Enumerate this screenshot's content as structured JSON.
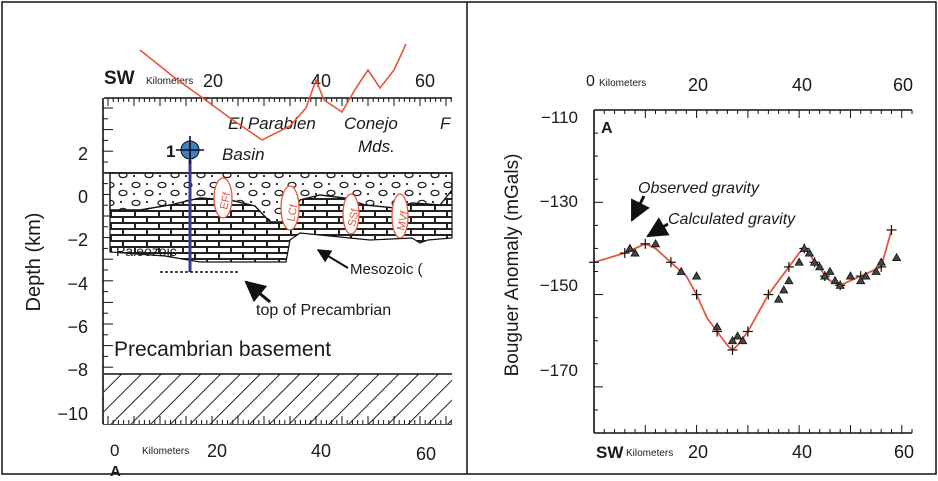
{
  "left_panel": {
    "direction_label": "SW",
    "top_axis_unit": "Kilometers",
    "top_axis_ticks": [
      "20",
      "40",
      "60"
    ],
    "bottom_axis_unit": "Kilometers",
    "bottom_axis_ticks": [
      "0",
      "20",
      "40",
      "60"
    ],
    "bottom_axis_letter": "A",
    "y_axis_label": "Depth (km)",
    "y_ticks": [
      "2",
      "0",
      "−2",
      "−4",
      "−6",
      "−8",
      "−10"
    ],
    "well_number": "1",
    "place_labels": [
      "El Parabien",
      "Basin",
      "Conejo",
      "Mds.",
      "F"
    ],
    "fault_labels": [
      "EFf",
      "LCf",
      "SSf",
      "MVf"
    ],
    "unit_labels": {
      "paleozoic": "Paleozoic",
      "mesozoic": "Mesozoic (",
      "precambrian_top": "top of Precambrian",
      "basement": "Precambrian basement"
    }
  },
  "right_panel": {
    "top_axis_unit": "Kilometers",
    "top_axis_ticks": [
      "0",
      "20",
      "40",
      "60"
    ],
    "bottom_axis_direction": "SW",
    "bottom_axis_unit": "Kilometers",
    "bottom_axis_ticks": [
      "20",
      "40",
      "60"
    ],
    "panel_letter": "A",
    "y_axis_label": "Bouguer Anomaly (mGals)",
    "y_ticks": [
      "−110",
      "−130",
      "−150",
      "−170"
    ],
    "legend_observed": "Observed gravity",
    "legend_calculated": "Calculated gravity"
  },
  "colors": {
    "curve": "#e8553a",
    "well": "#3b3a8f",
    "ink": "#1a1a1a",
    "frame": "#111111"
  },
  "chart_data": {
    "type": "scatter",
    "xlabel": "Kilometers",
    "ylabel": "Bouguer Anomaly (mGals)",
    "xlim": [
      0,
      62
    ],
    "ylim": [
      -180,
      -110
    ],
    "series": [
      {
        "name": "Observed gravity",
        "x": [
          7,
          8,
          12,
          17,
          20,
          24,
          27,
          28,
          29,
          36,
          37,
          38,
          40,
          41,
          42,
          43,
          44,
          45,
          46,
          47,
          48,
          50,
          52,
          53,
          55,
          56,
          59
        ],
        "y": [
          -140,
          -141,
          -139,
          -145,
          -146,
          -157,
          -160,
          -159,
          -160,
          -151,
          -149,
          -147,
          -143,
          -140,
          -141,
          -143,
          -144,
          -146,
          -145,
          -147,
          -148,
          -146,
          -147,
          -146,
          -145,
          -143,
          -142
        ]
      },
      {
        "name": "Calculated gravity",
        "x": [
          0,
          3,
          6,
          8,
          10,
          12,
          15,
          18,
          20,
          22,
          24,
          26,
          27,
          28,
          30,
          32,
          34,
          36,
          38,
          40,
          41,
          42,
          43,
          44,
          45,
          46,
          48,
          50,
          52,
          54,
          56,
          57,
          58
        ],
        "y": [
          -143,
          -142,
          -141,
          -140,
          -139,
          -140,
          -143,
          -146,
          -150,
          -155,
          -158,
          -161,
          -162,
          -161,
          -158,
          -154,
          -150,
          -147,
          -144,
          -141,
          -140,
          -141,
          -143,
          -144,
          -146,
          -147,
          -148,
          -147,
          -146,
          -145,
          -144,
          -140,
          -136
        ]
      }
    ]
  }
}
